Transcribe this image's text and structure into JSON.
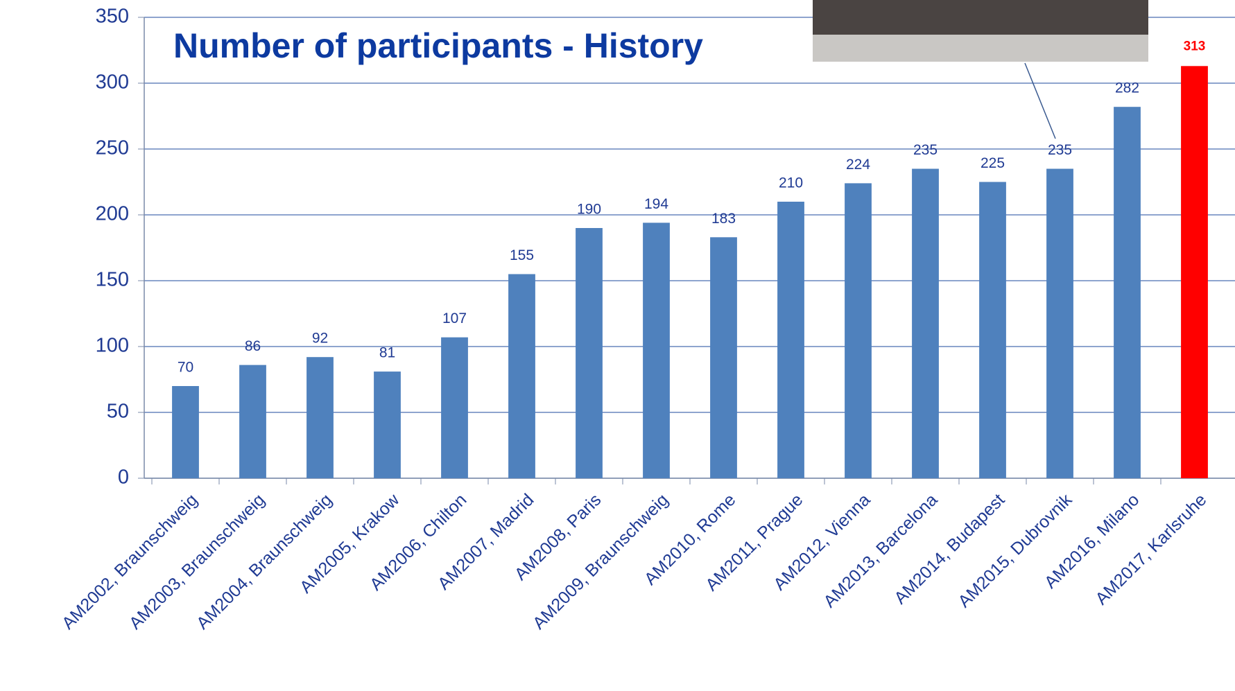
{
  "chart_data": {
    "type": "bar",
    "title": "Number of participants - History",
    "categories": [
      "AM2002, Braunschweig",
      "AM2003, Braunschweig",
      "AM2004, Braunschweig",
      "AM2005, Krakow",
      "AM2006, Chilton",
      "AM2007, Madrid",
      "AM2008, Paris",
      "AM2009, Braunschweig",
      "AM2010, Rome",
      "AM2011, Prague",
      "AM2012, Vienna",
      "AM2013, Barcelona",
      "AM2014, Budapest",
      "AM2015, Dubrovnik",
      "AM2016, Milano",
      "AM2017, Karlsruhe"
    ],
    "values": [
      70,
      86,
      92,
      81,
      107,
      155,
      190,
      194,
      183,
      210,
      224,
      235,
      225,
      235,
      282,
      313
    ],
    "colors": [
      "#4f81bd",
      "#4f81bd",
      "#4f81bd",
      "#4f81bd",
      "#4f81bd",
      "#4f81bd",
      "#4f81bd",
      "#4f81bd",
      "#4f81bd",
      "#4f81bd",
      "#4f81bd",
      "#4f81bd",
      "#4f81bd",
      "#4f81bd",
      "#4f81bd",
      "#ff0000"
    ],
    "ylim": [
      0,
      350
    ],
    "yticks": [
      0,
      50,
      100,
      150,
      200,
      250,
      300,
      350
    ],
    "grid": true
  }
}
